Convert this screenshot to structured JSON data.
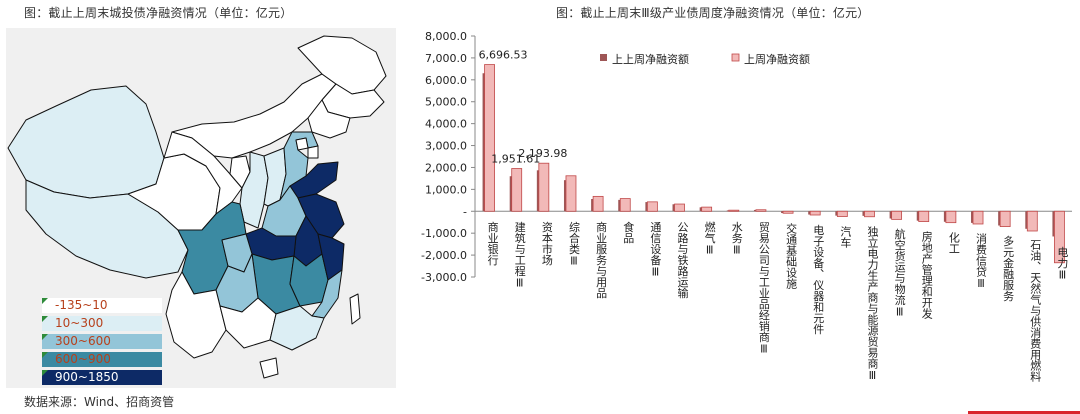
{
  "left_panel": {
    "title": "图：截止上周末城投债净融资情况（单位：亿元）",
    "legend": [
      {
        "label": "-135~10",
        "color": "#ffffff",
        "text_color": "#b7411c"
      },
      {
        "label": "10~300",
        "color": "#dceef4",
        "text_color": "#b7411c"
      },
      {
        "label": "300~600",
        "color": "#93c5d8",
        "text_color": "#b7411c"
      },
      {
        "label": "600~900",
        "color": "#3b8aa2",
        "text_color": "#b7411c"
      },
      {
        "label": "900~1850",
        "color": "#0d2a66",
        "text_color": "#ffffff"
      }
    ],
    "regions": [
      {
        "name": "xinjiang",
        "band": 1
      },
      {
        "name": "tibet",
        "band": 1
      },
      {
        "name": "qinghai",
        "band": 0
      },
      {
        "name": "inner-mongolia",
        "band": 0
      },
      {
        "name": "heilongjiang",
        "band": 0
      },
      {
        "name": "jilin",
        "band": 0
      },
      {
        "name": "liaoning",
        "band": 0
      },
      {
        "name": "gansu",
        "band": 0
      },
      {
        "name": "ningxia",
        "band": 0
      },
      {
        "name": "shaanxi",
        "band": 1
      },
      {
        "name": "shanxi",
        "band": 1
      },
      {
        "name": "hebei",
        "band": 2
      },
      {
        "name": "beijing",
        "band": 0
      },
      {
        "name": "tianjin",
        "band": 0
      },
      {
        "name": "shandong",
        "band": 4
      },
      {
        "name": "henan",
        "band": 2
      },
      {
        "name": "jiangsu",
        "band": 4
      },
      {
        "name": "anhui",
        "band": 4
      },
      {
        "name": "hubei",
        "band": 4
      },
      {
        "name": "sichuan",
        "band": 3
      },
      {
        "name": "chongqing",
        "band": 2
      },
      {
        "name": "hunan",
        "band": 3
      },
      {
        "name": "jiangxi",
        "band": 3
      },
      {
        "name": "zhejiang",
        "band": 4
      },
      {
        "name": "fujian",
        "band": 2
      },
      {
        "name": "guizhou",
        "band": 2
      },
      {
        "name": "yunnan",
        "band": 0
      },
      {
        "name": "guangxi",
        "band": 0
      },
      {
        "name": "guangdong",
        "band": 1
      },
      {
        "name": "hainan",
        "band": 0
      },
      {
        "name": "taiwan",
        "band": 0
      }
    ]
  },
  "right_panel": {
    "title": "图：截止上周末Ⅲ级产业债周度净融资情况（单位：亿元）"
  },
  "chart_data": {
    "type": "bar",
    "categories": [
      "商业银行",
      "建筑与工程Ⅲ",
      "资本市场",
      "综合类Ⅲ",
      "商业服务与用品",
      "食品",
      "通信设备Ⅲ",
      "公路与铁路运输",
      "燃气Ⅲ",
      "水务Ⅲ",
      "贸易公司与工业品经销商Ⅲ",
      "交通基础设施",
      "电子设备、仪器和元件",
      "汽车",
      "独立电力生产商与能源贸易商Ⅲ",
      "航空货运与物流Ⅲ",
      "房地产管理和开发",
      "化工",
      "消费信贷Ⅲ",
      "多元金融服务",
      "石油、天然气与供消费用燃料",
      "电力Ⅲ"
    ],
    "series": [
      {
        "name": "上上周净融资额",
        "color": "#9e5656",
        "values": [
          6300,
          1600,
          1870,
          1420,
          560,
          520,
          420,
          320,
          180,
          40,
          60,
          -80,
          -150,
          -200,
          -210,
          -330,
          -430,
          -480,
          -530,
          -650,
          -800,
          -1150
        ]
      },
      {
        "name": "上周净融资额",
        "color": "#f2b9b8",
        "values": [
          6696.53,
          1951.61,
          2193.98,
          1620,
          680,
          580,
          430,
          330,
          190,
          50,
          70,
          -90,
          -170,
          -240,
          -250,
          -370,
          -470,
          -520,
          -580,
          -700,
          -900,
          -2350
        ]
      }
    ],
    "data_labels": [
      {
        "category": "商业银行",
        "text": "6,696.53"
      },
      {
        "category": "建筑与工程Ⅲ",
        "text": "1,951.61"
      },
      {
        "category": "资本市场",
        "text": "2,193.98"
      }
    ],
    "y_ticks": [
      8000,
      7000,
      6000,
      5000,
      4000,
      3000,
      2000,
      1000,
      0,
      -1000,
      -2000,
      -3000
    ],
    "y_tick_labels": [
      "8,000.0",
      "7,000.0",
      "6,000.0",
      "5,000.0",
      "4,000.0",
      "3,000.0",
      "2,000.0",
      "1,000.0",
      "-",
      "-1,000.0",
      "-2,000.0",
      "-3,000.0"
    ],
    "ylim": [
      -3000,
      8000
    ],
    "legend_position": "top-center",
    "grid": false
  },
  "source": "数据来源：Wind、招商资管"
}
